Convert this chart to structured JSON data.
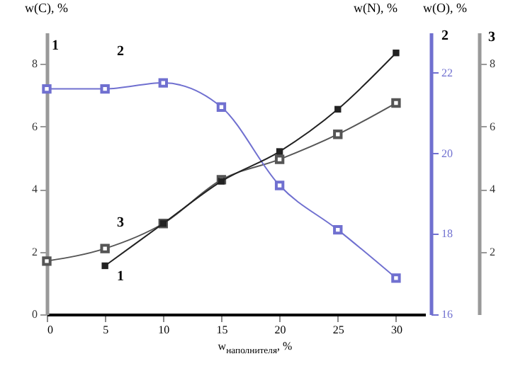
{
  "chart_data": {
    "type": "line",
    "xlabel": "w$_{наполнителя}$, %",
    "ylabel": "w(C), %",
    "y2label": "w(N), %",
    "y3label": "w(O), %",
    "x": [
      0,
      5,
      10,
      15,
      20,
      25,
      30
    ],
    "xlim": [
      0,
      32.5
    ],
    "xticks": [
      0,
      5,
      10,
      15,
      20,
      25,
      30
    ],
    "ylim": [
      0,
      9
    ],
    "yticks": [
      0,
      2,
      4,
      6,
      8
    ],
    "y2lim": [
      16,
      23
    ],
    "y2ticks": [
      16,
      18,
      20,
      22
    ],
    "y3lim": [
      0,
      9
    ],
    "y3ticks": [
      2,
      4,
      6,
      8
    ],
    "marker": "square",
    "grid": false,
    "series": [
      {
        "color": "#222222",
        "x": [
          5,
          10,
          15,
          20,
          25,
          30
        ],
        "values": [
          1.55,
          2.9,
          4.25,
          5.2,
          6.55,
          8.35
        ]
      },
      {
        "color": "#7070d0",
        "axis": "y2",
        "values": [
          21.6,
          21.6,
          21.75,
          21.15,
          19.2,
          18.1,
          16.9
        ]
      },
      {
        "color": "#555555",
        "axis": "y3",
        "values": [
          1.7,
          2.1,
          2.9,
          4.3,
          4.95,
          5.75,
          6.75
        ]
      }
    ],
    "annotations": [
      "1",
      "2",
      "3",
      "1",
      "2",
      "3"
    ]
  }
}
